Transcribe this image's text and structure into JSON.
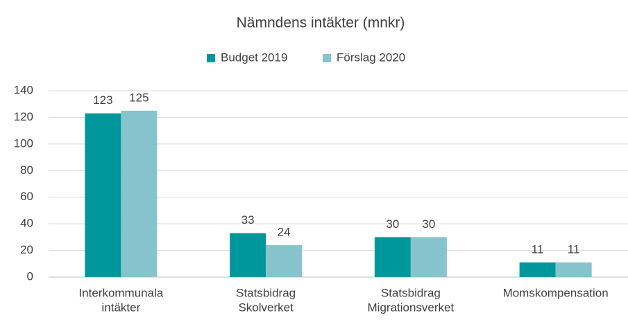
{
  "chart_data": {
    "type": "bar",
    "title": "Nämndens intäkter (mnkr)",
    "categories": [
      [
        "Interkommunala",
        "intäkter"
      ],
      [
        "Statsbidrag",
        "Skolverket"
      ],
      [
        "Statsbidrag",
        "Migrationsverket"
      ],
      [
        "Momskompensation"
      ]
    ],
    "series": [
      {
        "name": "Budget 2019",
        "color": "#00979c",
        "values": [
          123,
          33,
          30,
          11
        ]
      },
      {
        "name": "Förslag 2020",
        "color": "#87c3cb",
        "values": [
          125,
          24,
          30,
          11
        ]
      }
    ],
    "ylim": [
      0,
      140
    ],
    "yticks": [
      0,
      20,
      40,
      60,
      80,
      100,
      120,
      140
    ],
    "grid": true,
    "legend": "top"
  }
}
